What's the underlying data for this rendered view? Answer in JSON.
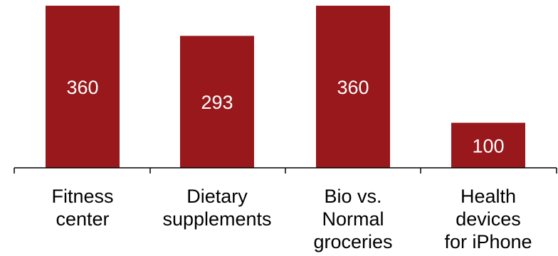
{
  "chart_data": {
    "type": "bar",
    "categories": [
      [
        "Fitness",
        "center"
      ],
      [
        "Dietary",
        "supplements"
      ],
      [
        "Bio vs.",
        "Normal",
        "groceries"
      ],
      [
        "Health",
        "devices",
        "for iPhone"
      ]
    ],
    "values": [
      360,
      293,
      360,
      100
    ],
    "data_labels": [
      "360",
      "293",
      "360",
      "100"
    ],
    "title": "",
    "xlabel": "",
    "ylabel": "",
    "ylim": [
      0,
      360
    ],
    "grid": false,
    "legend": "none",
    "colors": {
      "bar": "#98181b",
      "bar_label": "#ffffff",
      "axis": "#000000",
      "category_label": "#000000"
    }
  }
}
